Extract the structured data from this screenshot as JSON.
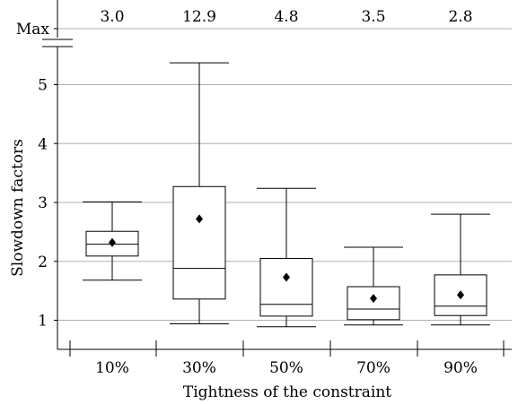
{
  "chart_data": {
    "type": "box",
    "xlabel": "Tightness of the constraint",
    "ylabel": "Slowdown factors",
    "categories": [
      "10%",
      "30%",
      "50%",
      "70%",
      "90%"
    ],
    "y_ticks": [
      "1",
      "2",
      "3",
      "4",
      "5"
    ],
    "ylim": [
      0.55,
      5.65
    ],
    "max_tick_label": "Max",
    "axis_break": true,
    "grid": "horizontal",
    "boxes": [
      {
        "category": "10%",
        "whisker_low": 1.68,
        "q1": 2.09,
        "median": 2.29,
        "q3": 2.51,
        "whisker_high": 3.01,
        "mean": 2.32,
        "max": "3.0"
      },
      {
        "category": "30%",
        "whisker_low": 0.94,
        "q1": 1.36,
        "median": 1.88,
        "q3": 3.27,
        "whisker_high": 5.37,
        "mean": 2.72,
        "max": "12.9"
      },
      {
        "category": "50%",
        "whisker_low": 0.89,
        "q1": 1.07,
        "median": 1.27,
        "q3": 2.05,
        "whisker_high": 3.24,
        "mean": 1.73,
        "max": "4.8"
      },
      {
        "category": "70%",
        "whisker_low": 0.92,
        "q1": 1.01,
        "median": 1.19,
        "q3": 1.57,
        "whisker_high": 2.24,
        "mean": 1.37,
        "max": "3.5"
      },
      {
        "category": "90%",
        "whisker_low": 0.92,
        "q1": 1.08,
        "median": 1.24,
        "q3": 1.77,
        "whisker_high": 2.8,
        "mean": 1.43,
        "max": "2.8"
      }
    ]
  }
}
